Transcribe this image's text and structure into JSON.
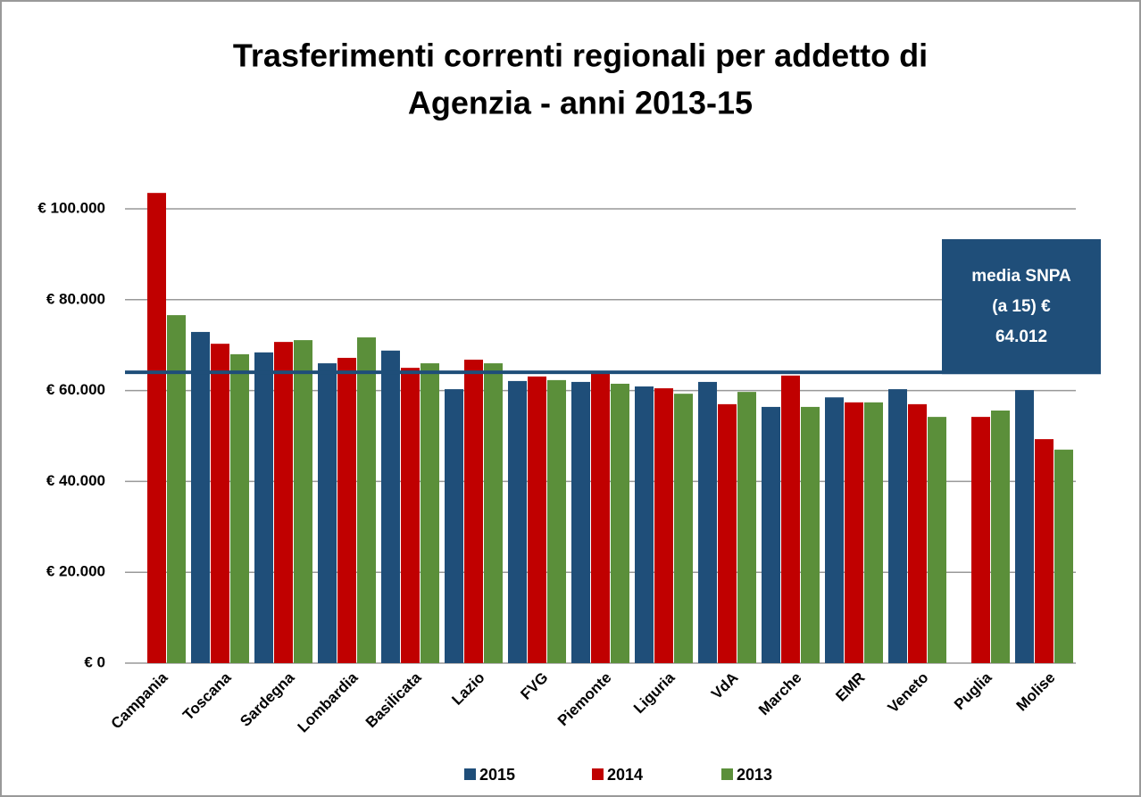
{
  "chart_data": {
    "type": "bar",
    "title": [
      "Trasferimenti correnti regionali per addetto di",
      "Agenzia - anni 2013-15"
    ],
    "categories": [
      "Campania",
      "Toscana",
      "Sardegna",
      "Lombardia",
      "Basilicata",
      "Lazio",
      "FVG",
      "Piemonte",
      "Liguria",
      "VdA",
      "Marche",
      "EMR",
      "Veneto",
      "Puglia",
      "Molise"
    ],
    "series": [
      {
        "name": "2015",
        "color": "#1f4e79",
        "values": [
          null,
          72900,
          68400,
          66000,
          68800,
          60300,
          62100,
          61900,
          60900,
          61900,
          56400,
          58500,
          60300,
          null,
          60100
        ]
      },
      {
        "name": "2014",
        "color": "#c00000",
        "values": [
          103500,
          70300,
          70700,
          67200,
          65000,
          66800,
          63100,
          64000,
          60500,
          57000,
          63300,
          57400,
          57000,
          54200,
          49300
        ]
      },
      {
        "name": "2013",
        "color": "#5b8f3a",
        "values": [
          76600,
          68000,
          71100,
          71700,
          66000,
          66000,
          62300,
          61500,
          59300,
          59700,
          56400,
          57400,
          54200,
          55600,
          47000
        ]
      }
    ],
    "ylim": [
      0,
      100000
    ],
    "yticks": [
      {
        "value": 0,
        "label": "€ 0"
      },
      {
        "value": 20000,
        "label": "€ 20.000"
      },
      {
        "value": 40000,
        "label": "€ 40.000"
      },
      {
        "value": 60000,
        "label": "€ 60.000"
      },
      {
        "value": 80000,
        "label": "€ 80.000"
      },
      {
        "value": 100000,
        "label": "€ 100.000"
      }
    ],
    "grid": true,
    "reference_line": {
      "value": 64012,
      "color": "#1f4e79",
      "annotation": [
        "media SNPA",
        "(a 15)  €",
        "64.012"
      ]
    }
  }
}
